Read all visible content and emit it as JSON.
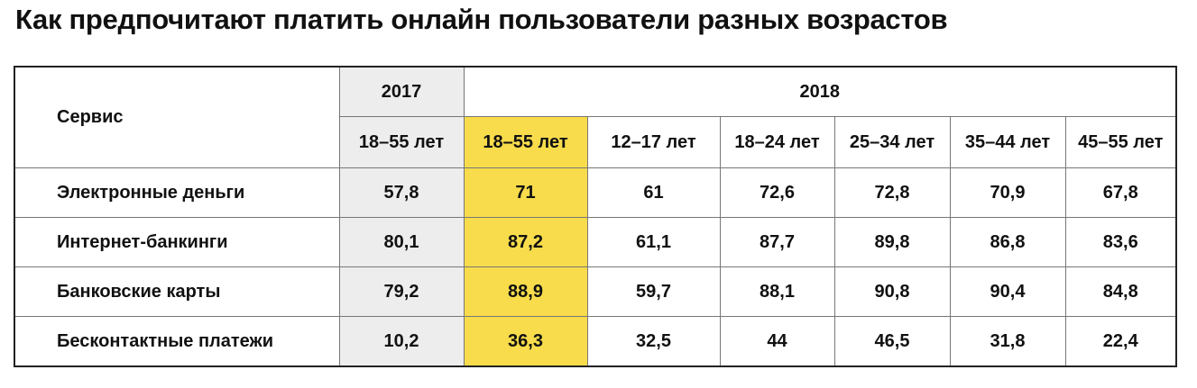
{
  "title": "Как предпочитают платить онлайн пользователи разных возрастов",
  "table": {
    "corner": "Сервис",
    "years": [
      "2017",
      "2018"
    ],
    "age_groups": [
      "18–55 лет",
      "18–55 лет",
      "12–17 лет",
      "18–24 лет",
      "25–34 лет",
      "35–44 лет",
      "45–55 лет"
    ],
    "rows": [
      {
        "service": "Электронные деньги",
        "values": [
          "57,8",
          "71",
          "61",
          "72,6",
          "72,8",
          "70,9",
          "67,8"
        ]
      },
      {
        "service": "Интернет-банкинги",
        "values": [
          "80,1",
          "87,2",
          "61,1",
          "87,7",
          "89,8",
          "86,8",
          "83,6"
        ]
      },
      {
        "service": "Банковские карты",
        "values": [
          "79,2",
          "88,9",
          "59,7",
          "88,1",
          "90,8",
          "90,4",
          "84,8"
        ]
      },
      {
        "service": "Бесконтактные платежи",
        "values": [
          "10,2",
          "36,3",
          "32,5",
          "44",
          "46,5",
          "31,8",
          "22,4"
        ]
      }
    ]
  }
}
